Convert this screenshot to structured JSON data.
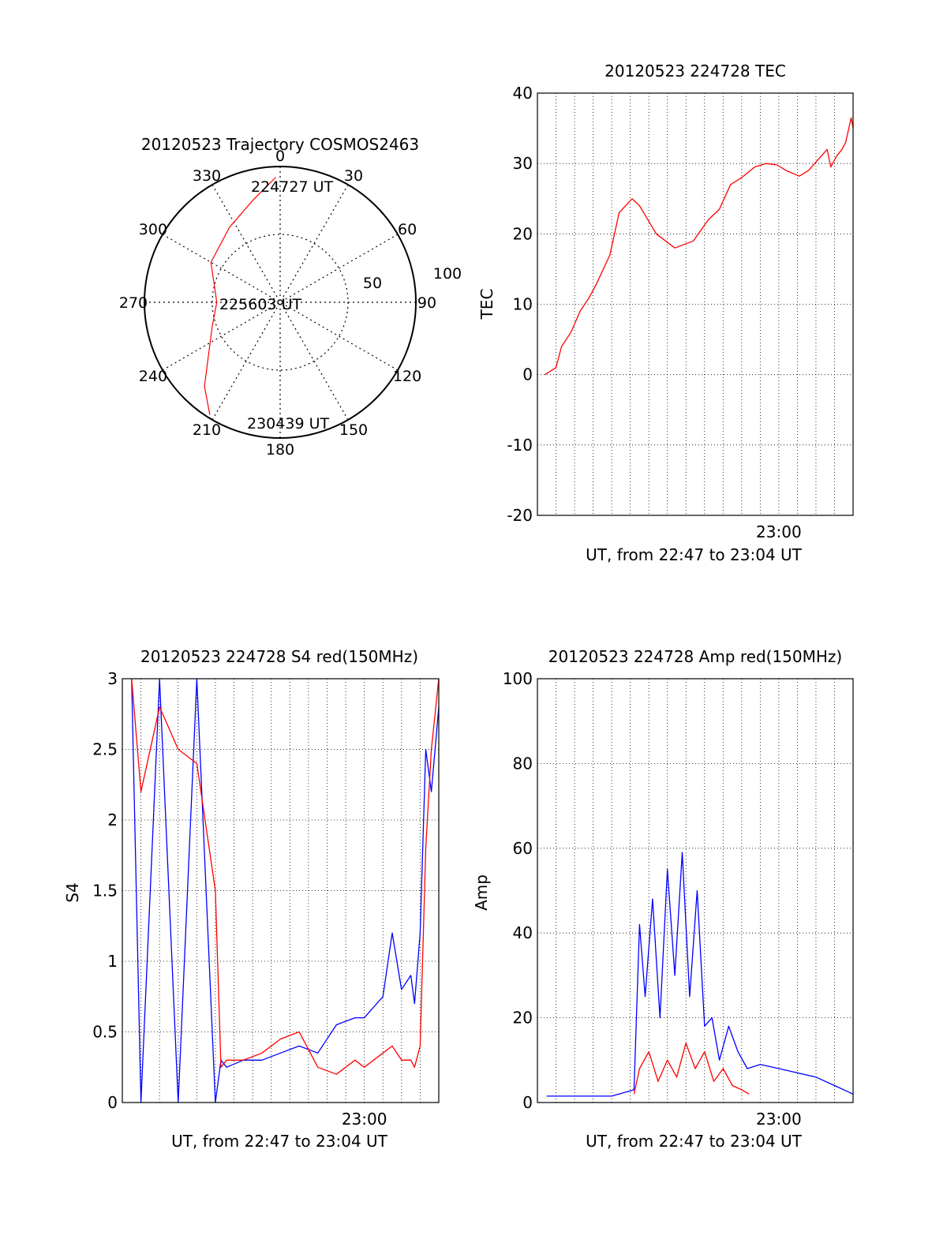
{
  "chart_data": [
    {
      "type": "polar",
      "title": "20120523 Trajectory COSMOS2463",
      "angle_labels": [
        "0",
        "30",
        "60",
        "90",
        "120",
        "150",
        "180",
        "210",
        "240",
        "270",
        "300",
        "330"
      ],
      "radius_labels": [
        "50",
        "100"
      ],
      "series": [
        {
          "color": "#ff0000",
          "points": [
            {
              "az": 358,
              "zen": 83
            },
            {
              "az": 345,
              "zen": 70
            },
            {
              "az": 326,
              "zen": 60
            },
            {
              "az": 300,
              "zen": 53
            },
            {
              "az": 270,
              "zen": 42
            },
            {
              "az": 250,
              "zen": 48
            },
            {
              "az": 222,
              "zen": 75
            },
            {
              "az": 212,
              "zen": 88
            }
          ]
        }
      ],
      "annotations": [
        {
          "text": "224727 UT",
          "az": 6,
          "zen": 85
        },
        {
          "text": "225603 UT",
          "az": 266,
          "zen": 8
        },
        {
          "text": "230439 UT",
          "az": 196,
          "zen": 86
        }
      ]
    },
    {
      "type": "line",
      "title": "20120523 224728 TEC",
      "xlabel": "UT, from 22:47 to 23:04 UT",
      "ylabel": "TEC",
      "xlim": [
        0,
        17
      ],
      "ylim": [
        -20,
        40
      ],
      "yticks": [
        -20,
        -10,
        0,
        10,
        20,
        30,
        40
      ],
      "xtick_labels": [
        {
          "label": "23:00",
          "x": 13
        }
      ],
      "grid": true,
      "series": [
        {
          "color": "#ff0000",
          "x": [
            0.4,
            1.0,
            1.3,
            1.8,
            2.3,
            2.8,
            3.2,
            3.9,
            4.4,
            5.1,
            5.5,
            6.4,
            7.4,
            8.4,
            9.2,
            9.8,
            10.4,
            11.0,
            11.7,
            12.3,
            12.9,
            13.4,
            14.1,
            14.6,
            15.1,
            15.6,
            15.8,
            16.1,
            16.4,
            16.6,
            16.9,
            17.0
          ],
          "y": [
            0.0,
            1.0,
            4.0,
            6.0,
            9.0,
            11.0,
            13.0,
            17.0,
            23.0,
            25.0,
            24.0,
            20.0,
            18.0,
            19.0,
            22.0,
            23.5,
            27.0,
            28.0,
            29.5,
            30.0,
            29.8,
            29.0,
            28.2,
            29.0,
            30.5,
            32.0,
            29.5,
            31.0,
            32.0,
            33.0,
            36.5,
            35.0
          ]
        }
      ]
    },
    {
      "type": "line",
      "title": "20120523 224728 S4 red(150MHz)",
      "xlabel": "UT, from 22:47 to 23:04 UT",
      "ylabel": "S4",
      "xlim": [
        0,
        17
      ],
      "ylim": [
        0,
        3
      ],
      "yticks": [
        0,
        0.5,
        1,
        1.5,
        2,
        2.5,
        3
      ],
      "ytick_labels": [
        "0",
        "0.5",
        "1",
        "1.5",
        "2",
        "2.5",
        "3"
      ],
      "xtick_labels": [
        {
          "label": "23:00",
          "x": 13
        }
      ],
      "grid": true,
      "series": [
        {
          "color": "#0000ff",
          "x": [
            0.5,
            1.0,
            2.0,
            3.0,
            4.0,
            5.0,
            5.3,
            5.6,
            6.5,
            7.5,
            8.5,
            9.5,
            10.5,
            11.5,
            12.5,
            13.0,
            14.0,
            14.5,
            15.0,
            15.5,
            15.7,
            16.0,
            16.3,
            16.6,
            17.0
          ],
          "y": [
            3.0,
            0.0,
            3.0,
            0.0,
            3.0,
            0.0,
            0.3,
            0.25,
            0.3,
            0.3,
            0.35,
            0.4,
            0.35,
            0.55,
            0.6,
            0.6,
            0.75,
            1.2,
            0.8,
            0.9,
            0.7,
            1.2,
            2.5,
            2.2,
            2.8
          ]
        },
        {
          "color": "#ff0000",
          "x": [
            0.5,
            1.0,
            2.0,
            3.0,
            4.0,
            5.0,
            5.3,
            5.6,
            6.5,
            7.5,
            8.5,
            9.5,
            10.5,
            11.5,
            12.5,
            13.0,
            14.0,
            14.5,
            15.0,
            15.5,
            15.7,
            16.0,
            16.3,
            16.6,
            17.0
          ],
          "y": [
            3.0,
            2.2,
            2.8,
            2.5,
            2.4,
            1.5,
            0.25,
            0.3,
            0.3,
            0.35,
            0.45,
            0.5,
            0.25,
            0.2,
            0.3,
            0.25,
            0.35,
            0.4,
            0.3,
            0.3,
            0.25,
            0.4,
            1.8,
            2.5,
            3.0
          ]
        }
      ]
    },
    {
      "type": "line",
      "title": "20120523 224728 Amp red(150MHz)",
      "xlabel": "UT, from 22:47 to 23:04 UT",
      "ylabel": "Amp",
      "xlim": [
        0,
        17
      ],
      "ylim": [
        0,
        100
      ],
      "yticks": [
        0,
        20,
        40,
        60,
        80,
        100
      ],
      "xtick_labels": [
        {
          "label": "23:00",
          "x": 13
        }
      ],
      "grid": true,
      "series": [
        {
          "color": "#0000ff",
          "x": [
            0.5,
            2.0,
            4.0,
            5.2,
            5.5,
            5.8,
            6.2,
            6.6,
            7.0,
            7.4,
            7.8,
            8.2,
            8.6,
            9.0,
            9.4,
            9.8,
            10.3,
            10.8,
            11.3,
            12.0,
            13.0,
            14.0,
            15.0,
            16.0,
            17.0
          ],
          "y": [
            1.5,
            1.5,
            1.5,
            3.0,
            42.0,
            25.0,
            48.0,
            20.0,
            55.0,
            30.0,
            59.0,
            25.0,
            50.0,
            18.0,
            20.0,
            10.0,
            18.0,
            12.0,
            8.0,
            9.0,
            8.0,
            7.0,
            6.0,
            4.0,
            2.0
          ]
        },
        {
          "color": "#ff0000",
          "x": [
            5.2,
            5.5,
            6.0,
            6.5,
            7.0,
            7.5,
            8.0,
            8.5,
            9.0,
            9.5,
            10.0,
            10.5,
            11.0,
            11.4
          ],
          "y": [
            2.0,
            8.0,
            12.0,
            5.0,
            10.0,
            6.0,
            14.0,
            8.0,
            12.0,
            5.0,
            8.0,
            4.0,
            3.0,
            2.0
          ]
        }
      ]
    }
  ]
}
